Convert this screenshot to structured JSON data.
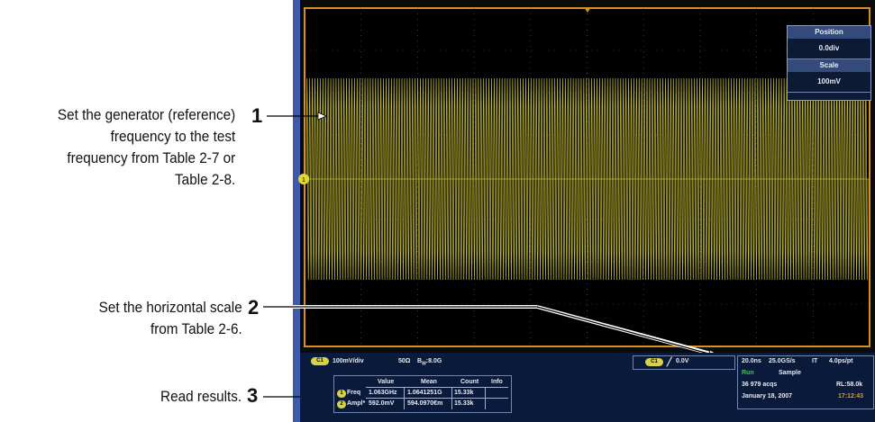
{
  "callouts": [
    {
      "number": "1",
      "text_lines": [
        "Set the generator (reference)",
        "frequency to the test",
        "frequency from Table 2-7 or",
        "Table 2-8."
      ]
    },
    {
      "number": "2",
      "text_lines": [
        "Set the horizontal scale",
        "from Table 2-6."
      ]
    },
    {
      "number": "3",
      "text_lines": [
        "Read results."
      ]
    }
  ],
  "position_panel": {
    "position_label": "Position",
    "position_value": "0.0div",
    "scale_label": "Scale",
    "scale_value": "100mV"
  },
  "channel_readout": {
    "badge": "C1",
    "volts_div": "100mV/div",
    "impedance": "50Ω",
    "bw_prefix": "B",
    "bw_sub": "W",
    "bw_value": ":8.0G"
  },
  "trigger_readout": {
    "badge": "C1",
    "level": "0.0V"
  },
  "acquisition": {
    "timebase": "20.0ns",
    "sample_rate": "25.0GS/s",
    "mode": "IT",
    "resolution": "4.0ps/pt",
    "state": "Run",
    "acq_mode": "Sample",
    "acqs": "36 979 acqs",
    "record_length": "RL:58.0k",
    "date": "January 18, 2007",
    "time": "17:12:43"
  },
  "measurements": {
    "headers": [
      "Value",
      "Mean",
      "Count",
      "Info"
    ],
    "rows": [
      {
        "badge": "1",
        "label": "Freq",
        "value": "1.063GHz",
        "mean": "1.0641251G",
        "count": "15.33k",
        "info": ""
      },
      {
        "badge": "2",
        "label": "Ampl*",
        "value": "592.0mV",
        "mean": "594.0970€m",
        "count": "15.33k",
        "info": ""
      }
    ]
  },
  "colors": {
    "trace": "#c8c036",
    "frame": "#d9901c",
    "panel": "#0a1a3a",
    "run": "#29d63a",
    "time": "#e89a1c"
  }
}
